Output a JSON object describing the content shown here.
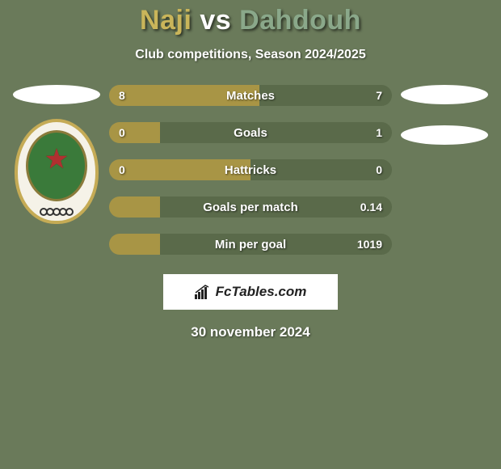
{
  "title": {
    "player1": "Naji",
    "vs": "vs",
    "player2": "Dahdouh",
    "player1_color": "#c9b55a",
    "vs_color": "#ffffff",
    "player2_color": "#8aa88a"
  },
  "subtitle": "Club competitions, Season 2024/2025",
  "colors": {
    "background": "#6a7a5a",
    "bar_left": "#a89545",
    "bar_right": "#5a6a4a",
    "text": "#ffffff"
  },
  "stats": [
    {
      "label": "Matches",
      "left_value": "8",
      "right_value": "7",
      "left_pct": 53,
      "right_pct": 47
    },
    {
      "label": "Goals",
      "left_value": "0",
      "right_value": "1",
      "left_pct": 18,
      "right_pct": 82
    },
    {
      "label": "Hattricks",
      "left_value": "0",
      "right_value": "0",
      "left_pct": 50,
      "right_pct": 50
    },
    {
      "label": "Goals per match",
      "left_value": "",
      "right_value": "0.14",
      "left_pct": 18,
      "right_pct": 82
    },
    {
      "label": "Min per goal",
      "left_value": "",
      "right_value": "1019",
      "left_pct": 18,
      "right_pct": 82
    }
  ],
  "brand": "FcTables.com",
  "date": "30 november 2024",
  "emblem": {
    "outer_border": "#c5ab55",
    "outer_fill": "#f5f2e8",
    "inner_fill": "#3a7a3a",
    "star_color": "#b03030"
  }
}
